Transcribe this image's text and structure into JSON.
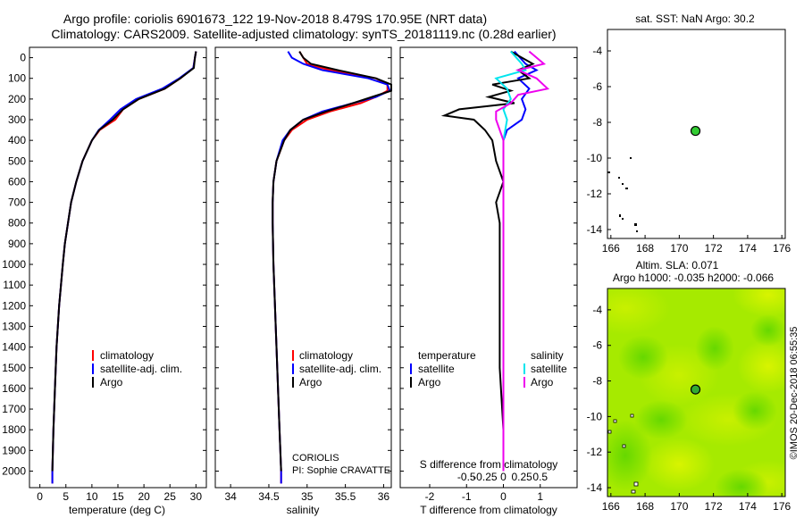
{
  "header": {
    "line1": "Argo profile: coriolis 6901673_122 19-Nov-2018 8.479S 170.95E (NRT data)",
    "line2": "Climatology: CARS2009. Satellite-adjusted climatology: synTS_20181119.nc (0.28d earlier)"
  },
  "depth_ticks": [
    "0",
    "100",
    "200",
    "300",
    "400",
    "500",
    "600",
    "700",
    "800",
    "900",
    "1000",
    "1100",
    "1200",
    "1300",
    "1400",
    "1500",
    "1600",
    "1700",
    "1800",
    "1900",
    "2000"
  ],
  "colors": {
    "climatology": "#ff0000",
    "satellite": "#0000ff",
    "argo": "#000000",
    "sat_salinity": "#00e5ee",
    "clim_salinity": "#ee00ee"
  },
  "chart_data": [
    {
      "type": "line",
      "title": "",
      "xlabel": "temperature (deg C)",
      "ylabel": "depth",
      "xlim": [
        -2,
        32
      ],
      "ylim": [
        2080,
        -50
      ],
      "xticks": [
        "0",
        "5",
        "10",
        "15",
        "20",
        "25",
        "30"
      ],
      "legend": [
        "climatology",
        "satellite-adj. clim.",
        "Argo"
      ],
      "series": [
        {
          "name": "climatology",
          "color": "#ff0000",
          "depth": [
            -30,
            0,
            50,
            100,
            150,
            200,
            250,
            300,
            350,
            400,
            500,
            600,
            700,
            800,
            900,
            1000,
            1200,
            1400,
            1600,
            1800,
            2000,
            2060
          ],
          "values": [
            30,
            29.8,
            29.5,
            27,
            24,
            19,
            16,
            14.5,
            11.5,
            10,
            8.2,
            7,
            6,
            5.4,
            4.8,
            4.4,
            3.7,
            3.2,
            2.9,
            2.6,
            2.4,
            2.4
          ]
        },
        {
          "name": "satellite-adj. clim.",
          "color": "#0000ff",
          "depth": [
            -30,
            0,
            50,
            100,
            150,
            200,
            250,
            300,
            350,
            400,
            500,
            600,
            700,
            800,
            900,
            1000,
            1200,
            1400,
            1600,
            1800,
            2000,
            2060
          ],
          "values": [
            30,
            29.8,
            29.5,
            26.8,
            23.5,
            18.5,
            15.5,
            13.5,
            11.3,
            10,
            8.2,
            7,
            6,
            5.4,
            4.8,
            4.4,
            3.7,
            3.2,
            2.9,
            2.6,
            2.4,
            2.4
          ]
        },
        {
          "name": "Argo",
          "color": "#000000",
          "depth": [
            -30,
            0,
            50,
            100,
            150,
            200,
            250,
            300,
            350,
            400,
            500,
            600,
            700,
            800,
            900,
            1000,
            1200,
            1400,
            1600,
            1800,
            2000
          ],
          "values": [
            30,
            29.8,
            29.6,
            27,
            24,
            19,
            16,
            14,
            11.4,
            10,
            8.2,
            7,
            6,
            5.4,
            4.8,
            4.4,
            3.7,
            3.2,
            2.9,
            2.6,
            2.4
          ]
        }
      ]
    },
    {
      "type": "line",
      "title": "",
      "xlabel": "salinity",
      "ylabel": "",
      "xlim": [
        33.8,
        36.1
      ],
      "ylim": [
        2080,
        -50
      ],
      "xticks": [
        "34",
        "34.5",
        "35",
        "35.5",
        "36"
      ],
      "legend": [
        "climatology",
        "satellite-adj. clim.",
        "Argo"
      ],
      "annotation": [
        "CORIOLIS",
        "PI: Sophie CRAVATTE"
      ],
      "series": [
        {
          "name": "climatology",
          "color": "#ff0000",
          "depth": [
            -30,
            0,
            30,
            60,
            100,
            130,
            160,
            190,
            220,
            260,
            300,
            350,
            400,
            500,
            600,
            700,
            800,
            1000,
            1200,
            1400,
            1600,
            1800,
            2000,
            2060
          ],
          "values": [
            34.9,
            34.95,
            35.0,
            35.3,
            35.9,
            36.05,
            36.05,
            35.9,
            35.7,
            35.3,
            35.0,
            34.8,
            34.7,
            34.6,
            34.56,
            34.55,
            34.55,
            34.56,
            34.58,
            34.6,
            34.62,
            34.64,
            34.66,
            34.66
          ]
        },
        {
          "name": "satellite-adj. clim.",
          "color": "#0000ff",
          "depth": [
            -30,
            0,
            30,
            60,
            100,
            130,
            160,
            190,
            220,
            260,
            300,
            350,
            400,
            500,
            600,
            700,
            800,
            1000,
            1200,
            1400,
            1600,
            1800,
            2000,
            2060
          ],
          "values": [
            34.75,
            34.8,
            34.95,
            35.2,
            35.8,
            36.05,
            36.08,
            35.9,
            35.6,
            35.2,
            34.95,
            34.78,
            34.68,
            34.6,
            34.56,
            34.55,
            34.55,
            34.56,
            34.58,
            34.6,
            34.62,
            34.64,
            34.66,
            34.66
          ]
        },
        {
          "name": "Argo",
          "color": "#000000",
          "depth": [
            -30,
            0,
            30,
            60,
            100,
            130,
            160,
            190,
            220,
            260,
            300,
            350,
            400,
            500,
            600,
            700,
            800,
            1000,
            1200,
            1400,
            1600,
            1800,
            2000
          ],
          "values": [
            34.9,
            34.95,
            35.05,
            35.4,
            35.9,
            36.1,
            36.1,
            35.85,
            35.6,
            35.25,
            34.95,
            34.78,
            34.7,
            34.6,
            34.56,
            34.55,
            34.55,
            34.56,
            34.58,
            34.6,
            34.62,
            34.64,
            34.66
          ]
        }
      ]
    },
    {
      "type": "line",
      "title": "",
      "xlabel": "T difference from climatology",
      "xlabel2": "S difference from climatology",
      "ylabel": "",
      "xlim": [
        -2.8,
        2.0
      ],
      "ylim": [
        2080,
        -50
      ],
      "xticks": [
        "-2",
        "-1",
        "0",
        "1"
      ],
      "xticks2": [
        "-0.5",
        "-0.25",
        "0",
        "0.25",
        "0.5"
      ],
      "legend_temperature": {
        "title": "temperature",
        "items": [
          "satellite",
          "Argo"
        ]
      },
      "legend_salinity": {
        "title": "salinity",
        "items": [
          "satellite",
          "Argo"
        ]
      },
      "series": [
        {
          "name": "temperature satellite",
          "color": "#0000ff",
          "depth": [
            -30,
            30,
            60,
            100,
            150,
            200,
            250,
            300,
            350,
            400,
            500,
            700,
            1000,
            1500,
            2000
          ],
          "values": [
            0.3,
            0.6,
            0.9,
            0.4,
            0.7,
            0.5,
            0.6,
            0.5,
            0.1,
            0.0,
            0.0,
            0.0,
            0.0,
            0.0,
            0.0
          ]
        },
        {
          "name": "temperature Argo",
          "color": "#000000",
          "depth": [
            -30,
            30,
            60,
            100,
            130,
            160,
            190,
            220,
            250,
            280,
            300,
            350,
            400,
            500,
            600,
            700,
            800,
            1000,
            1200,
            1500,
            1800,
            2000
          ],
          "values": [
            0.2,
            0.8,
            0.4,
            0.7,
            -0.3,
            0.2,
            -0.4,
            0.3,
            -1.2,
            -1.6,
            -0.8,
            -0.5,
            -0.3,
            -0.2,
            0.0,
            -0.2,
            -0.1,
            -0.1,
            -0.1,
            -0.1,
            0.0,
            0.0
          ]
        },
        {
          "name": "salinity satellite",
          "color": "#00e5ee",
          "depth": [
            -30,
            30,
            60,
            100,
            150,
            200,
            250,
            300,
            400,
            600,
            1000,
            1500,
            2000
          ],
          "values": [
            0.1,
            0.25,
            0.3,
            -0.1,
            0.05,
            0.1,
            0.0,
            0.05,
            0.0,
            0.0,
            0.0,
            0.0,
            0.0
          ]
        },
        {
          "name": "salinity Argo",
          "color": "#ee00ee",
          "depth": [
            -30,
            30,
            60,
            100,
            150,
            180,
            220,
            260,
            300,
            400,
            600,
            1000,
            1500,
            2000
          ],
          "values": [
            0.35,
            0.55,
            0.2,
            0.45,
            0.6,
            0.2,
            0.1,
            -0.1,
            -0.1,
            0.0,
            0.0,
            0.0,
            0.0,
            0.0
          ]
        }
      ]
    },
    {
      "type": "scatter",
      "title": "sat. SST: NaN Argo: 30.2",
      "xlim": [
        165.8,
        176.2
      ],
      "ylim": [
        -14.5,
        -2.8
      ],
      "xticks": [
        "166",
        "168",
        "170",
        "172",
        "174",
        "176"
      ],
      "yticks": [
        "-4",
        "-6",
        "-8",
        "-10",
        "-12",
        "-14"
      ],
      "points": [
        {
          "name": "Argo float",
          "x": 170.95,
          "y": -8.479,
          "color": "#33cc33"
        }
      ]
    },
    {
      "type": "heatmap",
      "title": "Altim. SLA: 0.071",
      "subtitle": "Argo h1000: -0.035 h2000: -0.066",
      "xlim": [
        165.8,
        176.2
      ],
      "ylim": [
        -14.5,
        -2.8
      ],
      "xticks": [
        "166",
        "168",
        "170",
        "172",
        "174",
        "176"
      ],
      "yticks": [
        "-4",
        "-6",
        "-8",
        "-10",
        "-12",
        "-14"
      ],
      "points": [
        {
          "name": "Argo float",
          "x": 170.95,
          "y": -8.479,
          "color": "#33aa33"
        }
      ]
    }
  ],
  "credit": "©IMOS 20-Dec-2018 06:55:35"
}
